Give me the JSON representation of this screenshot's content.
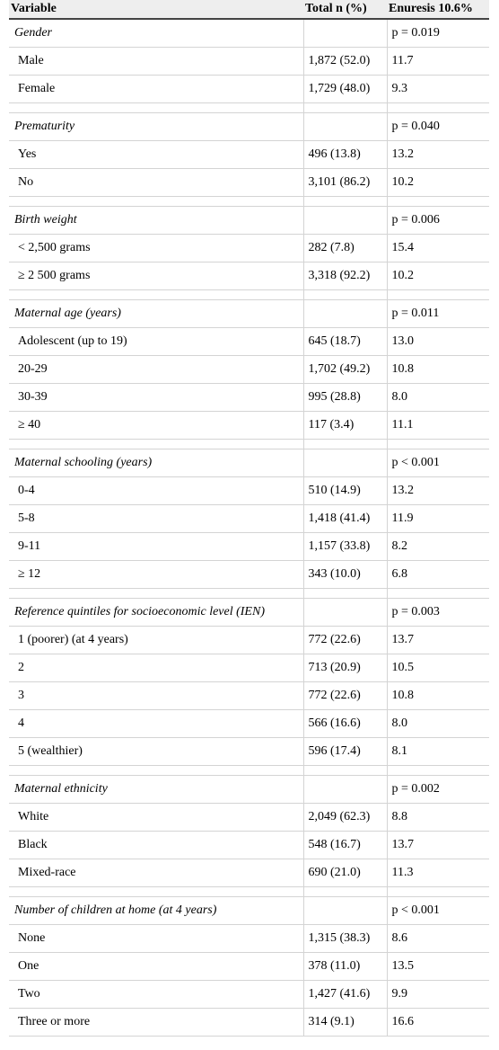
{
  "header": {
    "variable": "Variable",
    "total": "Total n (%)",
    "enuresis": "Enuresis 10.6%"
  },
  "groups": [
    {
      "label": "Gender",
      "p": "p = 0.019",
      "rows": [
        {
          "label": "Male",
          "total": "1,872 (52.0)",
          "enuresis": "11.7"
        },
        {
          "label": "Female",
          "total": "1,729 (48.0)",
          "enuresis": "9.3"
        }
      ]
    },
    {
      "label": "Prematurity",
      "p": "p = 0.040",
      "rows": [
        {
          "label": "Yes",
          "total": "496 (13.8)",
          "enuresis": "13.2"
        },
        {
          "label": "No",
          "total": "3,101 (86.2)",
          "enuresis": "10.2"
        }
      ]
    },
    {
      "label": "Birth weight",
      "p": "p = 0.006",
      "rows": [
        {
          "label": "< 2,500 grams",
          "total": "282 (7.8)",
          "enuresis": "15.4"
        },
        {
          "label": "≥ 2 500 grams",
          "total": "3,318 (92.2)",
          "enuresis": "10.2"
        }
      ]
    },
    {
      "label": "Maternal age (years)",
      "p": "p = 0.011",
      "rows": [
        {
          "label": "Adolescent (up to 19)",
          "total": "645 (18.7)",
          "enuresis": "13.0"
        },
        {
          "label": "20-29",
          "total": "1,702 (49.2)",
          "enuresis": "10.8"
        },
        {
          "label": "30-39",
          "total": "995 (28.8)",
          "enuresis": "8.0"
        },
        {
          "label": "≥ 40",
          "total": "117 (3.4)",
          "enuresis": "11.1"
        }
      ]
    },
    {
      "label": "Maternal schooling (years)",
      "p": "p < 0.001",
      "rows": [
        {
          "label": "0-4",
          "total": "510 (14.9)",
          "enuresis": "13.2"
        },
        {
          "label": "5-8",
          "total": "1,418 (41.4)",
          "enuresis": "11.9"
        },
        {
          "label": "9-11",
          "total": "1,157 (33.8)",
          "enuresis": "8.2"
        },
        {
          "label": "≥ 12",
          "total": "343 (10.0)",
          "enuresis": "6.8"
        }
      ]
    },
    {
      "label": "Reference quintiles for socioeconomic level (IEN)",
      "p": "p = 0.003",
      "rows": [
        {
          "label": "1 (poorer) (at 4 years)",
          "total": "772 (22.6)",
          "enuresis": "13.7"
        },
        {
          "label": "2",
          "total": "713 (20.9)",
          "enuresis": "10.5"
        },
        {
          "label": "3",
          "total": "772 (22.6)",
          "enuresis": "10.8"
        },
        {
          "label": "4",
          "total": "566 (16.6)",
          "enuresis": "8.0"
        },
        {
          "label": "5 (wealthier)",
          "total": "596 (17.4)",
          "enuresis": "8.1"
        }
      ]
    },
    {
      "label": "Maternal ethnicity",
      "p": "p = 0.002",
      "rows": [
        {
          "label": "White",
          "total": "2,049 (62.3)",
          "enuresis": "8.8"
        },
        {
          "label": "Black",
          "total": "548 (16.7)",
          "enuresis": "13.7"
        },
        {
          "label": "Mixed-race",
          "total": "690 (21.0)",
          "enuresis": "11.3"
        }
      ]
    },
    {
      "label": "Number of children at home (at 4 years)",
      "p": "p < 0.001",
      "rows": [
        {
          "label": "None",
          "total": "1,315 (38.3)",
          "enuresis": "8.6"
        },
        {
          "label": "One",
          "total": "378 (11.0)",
          "enuresis": "13.5"
        },
        {
          "label": "Two",
          "total": "1,427 (41.6)",
          "enuresis": "9.9"
        },
        {
          "label": "Three or more",
          "total": "314 (9.1)",
          "enuresis": "16.6"
        }
      ]
    }
  ]
}
